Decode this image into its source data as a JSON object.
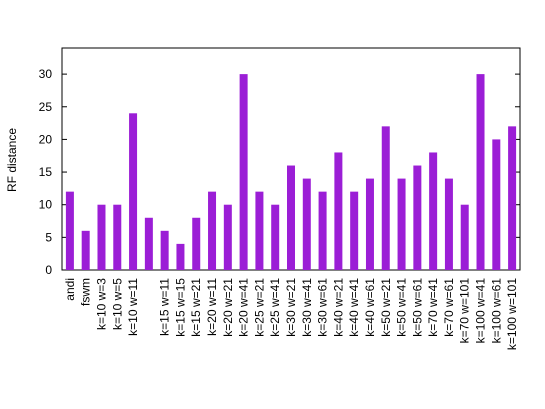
{
  "chart_data": {
    "type": "bar",
    "ylabel": "RF distance",
    "categories": [
      "andi",
      "fswm",
      "k=10 w=3",
      "k=10 w=5",
      "k=10 w=11",
      null,
      "k=15 w=11",
      "k=15 w=15",
      "k=15 w=21",
      "k=20 w=11",
      "k=20 w=21",
      "k=20 w=41",
      "k=25 w=21",
      "k=25 w=41",
      "k=30 w=21",
      "k=30 w=41",
      "k=30 w=61",
      "k=40 w=21",
      "k=40 w=41",
      "k=40 w=61",
      "k=50 w=21",
      "k=50 w=41",
      "k=50 w=61",
      "k=70 w=41",
      "k=70 w=61",
      "k=70 w=101",
      "k=100 w=41",
      "k=100 w=61",
      "k=100 w=101"
    ],
    "values": [
      12,
      6,
      10,
      10,
      24,
      8,
      6,
      4,
      8,
      12,
      10,
      30,
      12,
      10,
      16,
      14,
      12,
      18,
      12,
      14,
      22,
      14,
      16,
      18,
      14,
      10,
      30,
      20,
      22
    ],
    "color": "#9b1ed6",
    "ylim": [
      0,
      34
    ],
    "yticks": [
      0,
      5,
      10,
      15,
      20,
      25,
      30
    ]
  }
}
